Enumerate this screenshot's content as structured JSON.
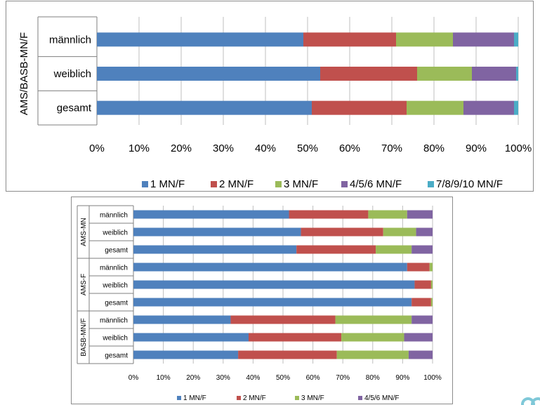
{
  "colors": {
    "s1": "#4f81bd",
    "s2": "#c0504d",
    "s3": "#9bbb59",
    "s4": "#8064a2",
    "s5": "#4bacc6",
    "grid": "#bfbfbf",
    "axis": "#7f7f7f"
  },
  "chart_data": [
    {
      "type": "bar",
      "orientation": "horizontal",
      "stacked": "percent",
      "group_labels": [
        "AMS/BASB-MN/F"
      ],
      "categories": [
        "männlich",
        "weiblich",
        "gesamt"
      ],
      "series": [
        {
          "name": "1 MN/F",
          "values": [
            49,
            53,
            51
          ]
        },
        {
          "name": "2 MN/F",
          "values": [
            22,
            23,
            22.5
          ]
        },
        {
          "name": "3 MN/F",
          "values": [
            13.5,
            13,
            13.5
          ]
        },
        {
          "name": "4/5/6 MN/F",
          "values": [
            14.5,
            10.5,
            12
          ]
        },
        {
          "name": "7/8/9/10 MN/F",
          "values": [
            1,
            0.5,
            1
          ]
        }
      ],
      "xlim": [
        0,
        100
      ],
      "xticks": [
        "0%",
        "10%",
        "20%",
        "30%",
        "40%",
        "50%",
        "60%",
        "70%",
        "80%",
        "90%",
        "100%"
      ],
      "grid": true,
      "legend_position": "bottom"
    },
    {
      "type": "bar",
      "orientation": "horizontal",
      "stacked": "percent",
      "groups": [
        {
          "label": "AMS-MN",
          "categories": [
            "männlich",
            "weiblich",
            "gesamt"
          ]
        },
        {
          "label": "AMS-F",
          "categories": [
            "männlich",
            "weiblich",
            "gesamt"
          ]
        },
        {
          "label": "BASB-MN/F",
          "categories": [
            "männlich",
            "weiblich",
            "gesamt"
          ]
        }
      ],
      "series": [
        {
          "name": "1 MN/F",
          "values": [
            52,
            56,
            54.5,
            91.5,
            94,
            93,
            32.5,
            38.5,
            35
          ]
        },
        {
          "name": "2 MN/F",
          "values": [
            26.5,
            27.5,
            26.5,
            7.5,
            5.5,
            6.5,
            35,
            31,
            33
          ]
        },
        {
          "name": "3 MN/F",
          "values": [
            13,
            11,
            12,
            1,
            0.5,
            0.5,
            25.5,
            21,
            24
          ]
        },
        {
          "name": "4/5/6 MN/F",
          "values": [
            8.5,
            5.5,
            7,
            0,
            0,
            0,
            7,
            9.5,
            8
          ]
        }
      ],
      "xlim": [
        0,
        100
      ],
      "xticks": [
        "0%",
        "10%",
        "20%",
        "30%",
        "40%",
        "50%",
        "60%",
        "70%",
        "80%",
        "90%",
        "100%"
      ],
      "grid": true,
      "legend_position": "bottom"
    }
  ]
}
